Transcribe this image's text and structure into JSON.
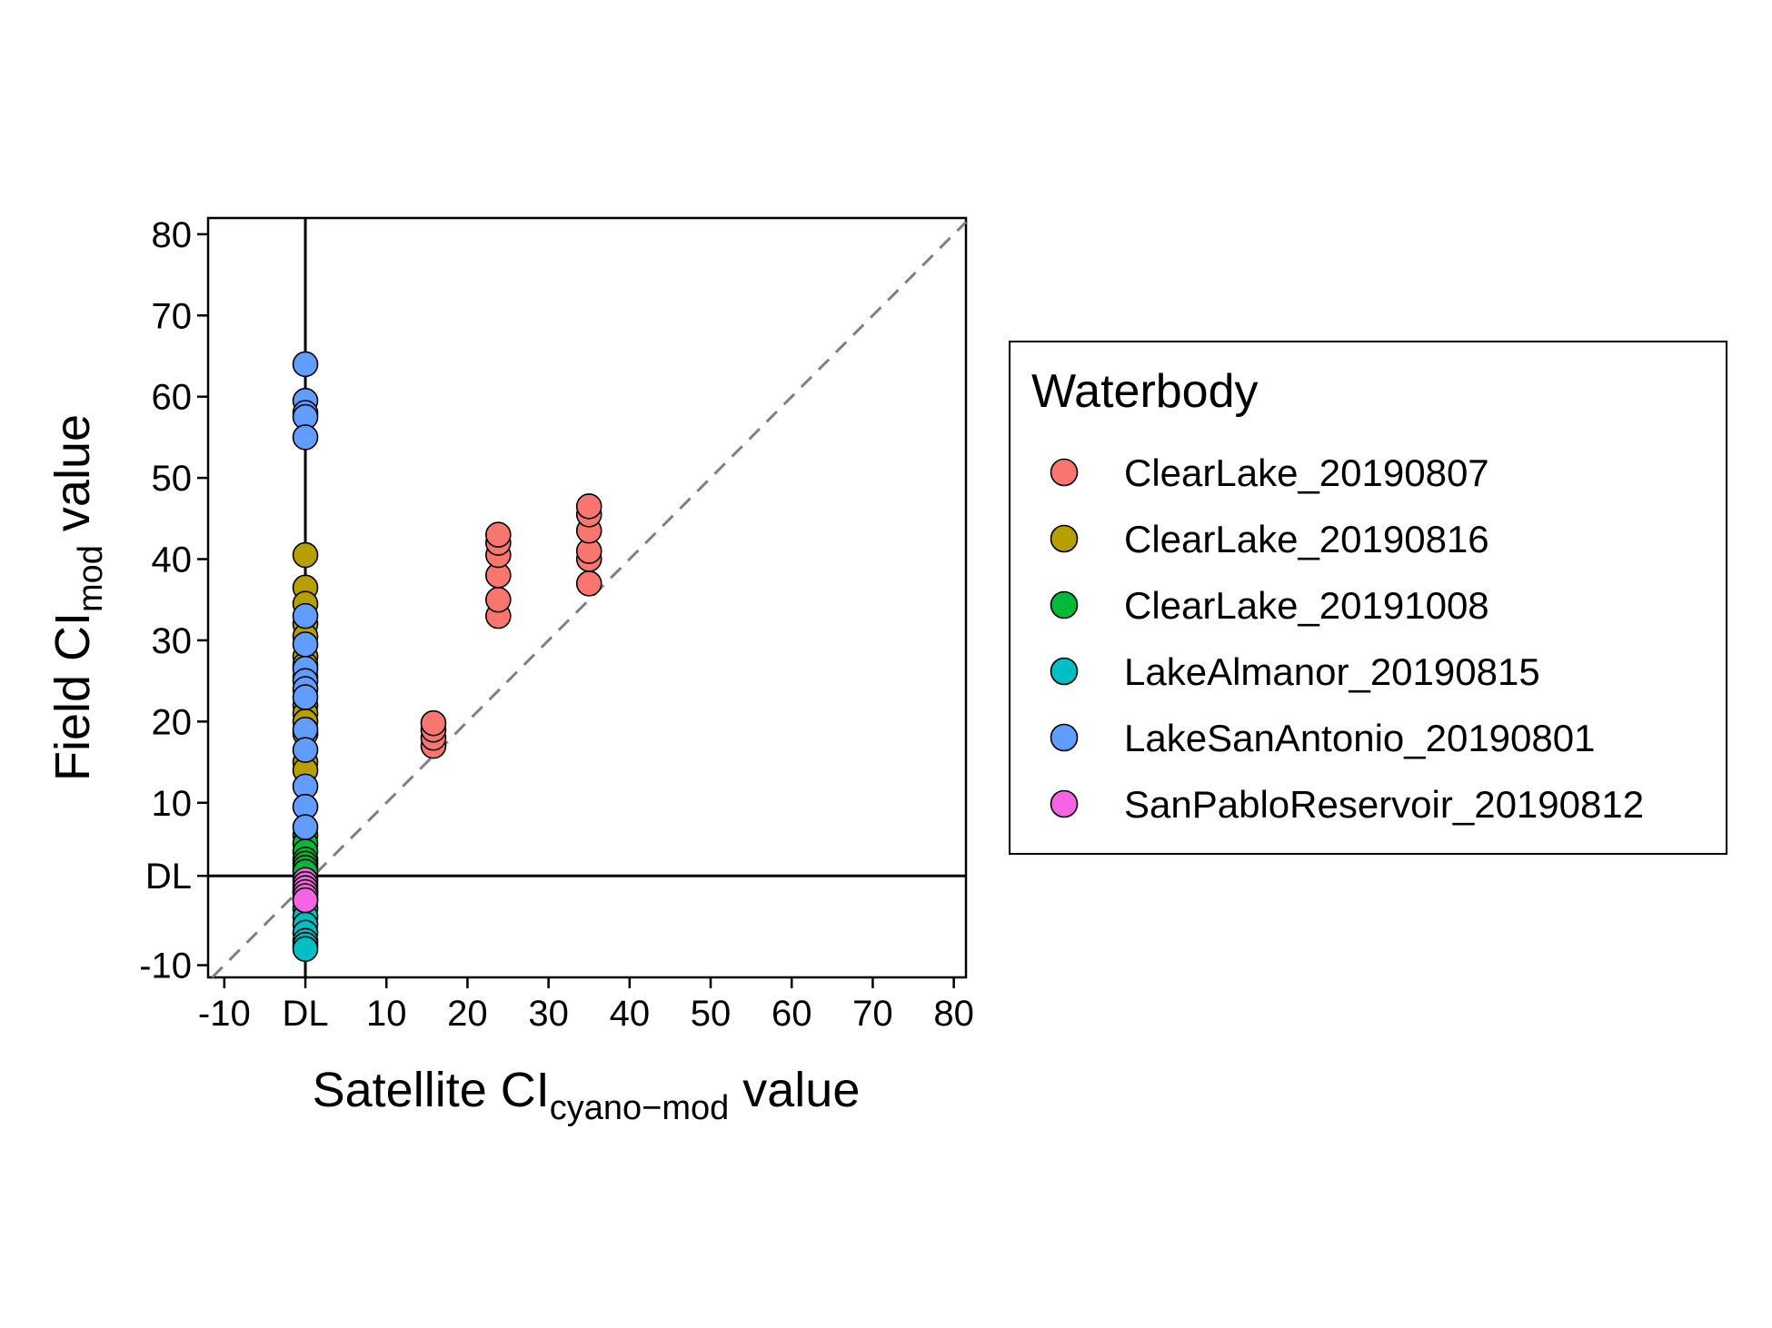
{
  "chart_data": {
    "type": "scatter",
    "title": "",
    "xlabel": {
      "prefix": "Satellite CI",
      "subscript": "cyano−mod",
      "suffix": " value"
    },
    "ylabel": {
      "prefix": "Field CI",
      "subscript": "mod",
      "suffix": " value"
    },
    "xlim": [
      -12,
      81.5
    ],
    "ylim": [
      -11.5,
      82
    ],
    "x_ticks": [
      {
        "v": -10,
        "label": "-10"
      },
      {
        "v": 0,
        "label": "DL"
      },
      {
        "v": 10,
        "label": "10"
      },
      {
        "v": 20,
        "label": "20"
      },
      {
        "v": 30,
        "label": "30"
      },
      {
        "v": 40,
        "label": "40"
      },
      {
        "v": 50,
        "label": "50"
      },
      {
        "v": 60,
        "label": "60"
      },
      {
        "v": 70,
        "label": "70"
      },
      {
        "v": 80,
        "label": "80"
      }
    ],
    "y_ticks": [
      {
        "v": -10,
        "label": "-10"
      },
      {
        "v": 1,
        "label": "DL"
      },
      {
        "v": 10,
        "label": "10"
      },
      {
        "v": 20,
        "label": "20"
      },
      {
        "v": 30,
        "label": "30"
      },
      {
        "v": 40,
        "label": "40"
      },
      {
        "v": 50,
        "label": "50"
      },
      {
        "v": 60,
        "label": "60"
      },
      {
        "v": 70,
        "label": "70"
      },
      {
        "v": 80,
        "label": "80"
      }
    ],
    "detection_limit": {
      "x": 0,
      "y": 1
    },
    "reference_line": "1:1 dashed",
    "legend": {
      "title": "Waterbody",
      "position": "right"
    },
    "series": [
      {
        "name": "ClearLake_20190807",
        "color": "#F8766D",
        "points": [
          [
            15.8,
            17
          ],
          [
            15.8,
            18
          ],
          [
            15.8,
            19
          ],
          [
            15.8,
            19.8
          ],
          [
            23.8,
            33
          ],
          [
            23.8,
            35
          ],
          [
            23.8,
            38
          ],
          [
            23.8,
            40.5
          ],
          [
            23.8,
            42
          ],
          [
            23.8,
            43
          ],
          [
            35,
            37
          ],
          [
            35,
            40
          ],
          [
            35,
            41
          ],
          [
            35,
            43.5
          ],
          [
            35,
            45.5
          ],
          [
            35,
            46.5
          ]
        ]
      },
      {
        "name": "ClearLake_20190816",
        "color": "#B79F00",
        "points": [
          [
            0,
            40.5
          ],
          [
            0,
            36.5
          ],
          [
            0,
            34.5
          ],
          [
            0,
            32
          ],
          [
            0,
            30.5
          ],
          [
            0,
            28
          ],
          [
            0,
            27
          ],
          [
            0,
            25.5
          ],
          [
            0,
            22
          ],
          [
            0,
            21
          ],
          [
            0,
            20
          ],
          [
            0,
            18.5
          ],
          [
            0,
            15
          ],
          [
            0,
            14
          ]
        ]
      },
      {
        "name": "ClearLake_20191008",
        "color": "#00BA38",
        "points": [
          [
            0,
            6
          ],
          [
            0,
            5
          ],
          [
            0,
            4
          ],
          [
            0,
            3
          ],
          [
            0,
            2.5
          ],
          [
            0,
            2
          ],
          [
            0,
            1.5
          ]
        ]
      },
      {
        "name": "LakeAlmanor_20190815",
        "color": "#00BFC4",
        "points": [
          [
            0,
            -1
          ],
          [
            0,
            -2
          ],
          [
            0,
            -3
          ],
          [
            0,
            -4
          ],
          [
            0,
            -5
          ],
          [
            0,
            -6
          ],
          [
            0,
            -7
          ],
          [
            0,
            -7.5
          ],
          [
            0,
            -8
          ]
        ]
      },
      {
        "name": "LakeSanAntonio_20190801",
        "color": "#619CFF",
        "points": [
          [
            0,
            64
          ],
          [
            0,
            59.5
          ],
          [
            0,
            58
          ],
          [
            0,
            57.5
          ],
          [
            0,
            55
          ],
          [
            0,
            33
          ],
          [
            0,
            29.5
          ],
          [
            0,
            26.5
          ],
          [
            0,
            25
          ],
          [
            0,
            24
          ],
          [
            0,
            23
          ],
          [
            0,
            19
          ],
          [
            0,
            16.5
          ],
          [
            0,
            12
          ],
          [
            0,
            9.5
          ],
          [
            0,
            7
          ]
        ]
      },
      {
        "name": "SanPabloReservoir_20190812",
        "color": "#F564E3",
        "points": [
          [
            0,
            0.5
          ],
          [
            0,
            0
          ],
          [
            0,
            -0.5
          ],
          [
            0,
            -1
          ],
          [
            0,
            -1.5
          ],
          [
            0,
            -2
          ]
        ]
      }
    ]
  }
}
